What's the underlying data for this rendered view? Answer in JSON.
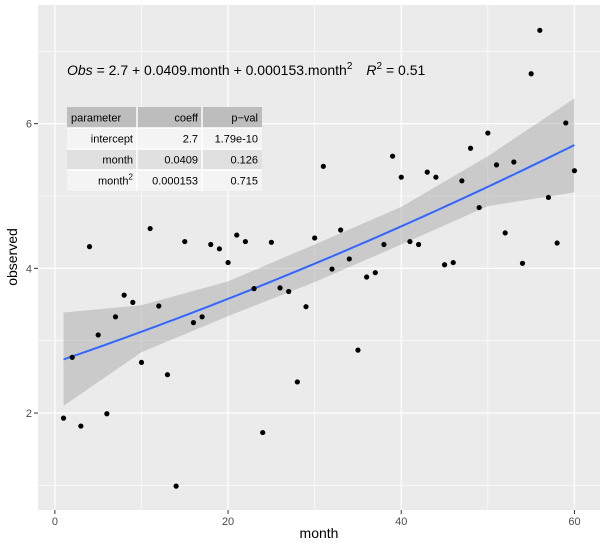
{
  "chart_data": {
    "type": "scatter",
    "xlabel": "month",
    "ylabel": "observed",
    "xlim": [
      -1.95,
      62.95
    ],
    "ylim": [
      0.66,
      7.64
    ],
    "x_ticks": [
      0,
      20,
      40,
      60
    ],
    "y_ticks": [
      2,
      4,
      6
    ],
    "grid": true,
    "colors": {
      "panel": "#ebebeb",
      "grid": "#ffffff",
      "points": "#000000",
      "line": "#3366ff",
      "band": "#999999"
    },
    "points": [
      {
        "x": 1,
        "y": 1.93
      },
      {
        "x": 2,
        "y": 2.77
      },
      {
        "x": 3,
        "y": 1.82
      },
      {
        "x": 4,
        "y": 4.3
      },
      {
        "x": 5,
        "y": 3.08
      },
      {
        "x": 6,
        "y": 1.99
      },
      {
        "x": 7,
        "y": 3.33
      },
      {
        "x": 8,
        "y": 3.63
      },
      {
        "x": 9,
        "y": 3.53
      },
      {
        "x": 10,
        "y": 2.7
      },
      {
        "x": 11,
        "y": 4.55
      },
      {
        "x": 12,
        "y": 3.48
      },
      {
        "x": 13,
        "y": 2.53
      },
      {
        "x": 14,
        "y": 0.99
      },
      {
        "x": 15,
        "y": 4.37
      },
      {
        "x": 16,
        "y": 3.25
      },
      {
        "x": 17,
        "y": 3.33
      },
      {
        "x": 18,
        "y": 4.33
      },
      {
        "x": 19,
        "y": 4.27
      },
      {
        "x": 20,
        "y": 4.08
      },
      {
        "x": 21,
        "y": 4.46
      },
      {
        "x": 22,
        "y": 4.37
      },
      {
        "x": 23,
        "y": 3.72
      },
      {
        "x": 24,
        "y": 1.73
      },
      {
        "x": 25,
        "y": 4.36
      },
      {
        "x": 26,
        "y": 3.73
      },
      {
        "x": 27,
        "y": 3.68
      },
      {
        "x": 28,
        "y": 2.43
      },
      {
        "x": 29,
        "y": 3.47
      },
      {
        "x": 30,
        "y": 4.42
      },
      {
        "x": 31,
        "y": 5.41
      },
      {
        "x": 32,
        "y": 3.99
      },
      {
        "x": 33,
        "y": 4.53
      },
      {
        "x": 34,
        "y": 4.13
      },
      {
        "x": 35,
        "y": 2.87
      },
      {
        "x": 36,
        "y": 3.88
      },
      {
        "x": 37,
        "y": 3.94
      },
      {
        "x": 38,
        "y": 4.33
      },
      {
        "x": 39,
        "y": 5.55
      },
      {
        "x": 40,
        "y": 5.26
      },
      {
        "x": 41,
        "y": 4.37
      },
      {
        "x": 42,
        "y": 4.33
      },
      {
        "x": 43,
        "y": 5.33
      },
      {
        "x": 44,
        "y": 5.26
      },
      {
        "x": 45,
        "y": 4.05
      },
      {
        "x": 46,
        "y": 4.08
      },
      {
        "x": 47,
        "y": 5.21
      },
      {
        "x": 48,
        "y": 5.66
      },
      {
        "x": 49,
        "y": 4.84
      },
      {
        "x": 50,
        "y": 5.87
      },
      {
        "x": 51,
        "y": 5.43
      },
      {
        "x": 52,
        "y": 4.49
      },
      {
        "x": 53,
        "y": 5.47
      },
      {
        "x": 54,
        "y": 4.07
      },
      {
        "x": 55,
        "y": 6.69
      },
      {
        "x": 56,
        "y": 7.29
      },
      {
        "x": 57,
        "y": 4.98
      },
      {
        "x": 58,
        "y": 4.35
      },
      {
        "x": 59,
        "y": 6.01
      },
      {
        "x": 60,
        "y": 5.35
      }
    ],
    "fit": {
      "method": "quadratic regression",
      "intercept": 2.7,
      "coef_month": 0.0409,
      "coef_month2": 0.000153
    },
    "ci_band": [
      {
        "x": 1,
        "low": 2.1,
        "high": 3.39
      },
      {
        "x": 10,
        "low": 2.84,
        "high": 3.49
      },
      {
        "x": 20,
        "low": 3.34,
        "high": 3.82
      },
      {
        "x": 30,
        "low": 3.81,
        "high": 4.33
      },
      {
        "x": 40,
        "low": 4.33,
        "high": 4.85
      },
      {
        "x": 50,
        "low": 4.86,
        "high": 5.55
      },
      {
        "x": 60,
        "low": 5.05,
        "high": 6.35
      }
    ],
    "equation": {
      "lhs": "Obs",
      "rhs": " = 2.7 + 0.0409.month + 0.000153.month",
      "rhs_sup": "2",
      "r2_label": "R",
      "r2_sup": "2",
      "r2_value": " = 0.51"
    },
    "coef_table": {
      "headers": [
        "parameter",
        "coeff",
        "p−val"
      ],
      "rows": [
        {
          "parameter": "intercept",
          "parameter_sup": "",
          "coeff": "2.7",
          "pval": "1.79e-10"
        },
        {
          "parameter": "month",
          "parameter_sup": "",
          "coeff": "0.0409",
          "pval": "0.126"
        },
        {
          "parameter": "month",
          "parameter_sup": "2",
          "coeff": "0.000153",
          "pval": "0.715"
        }
      ]
    }
  }
}
